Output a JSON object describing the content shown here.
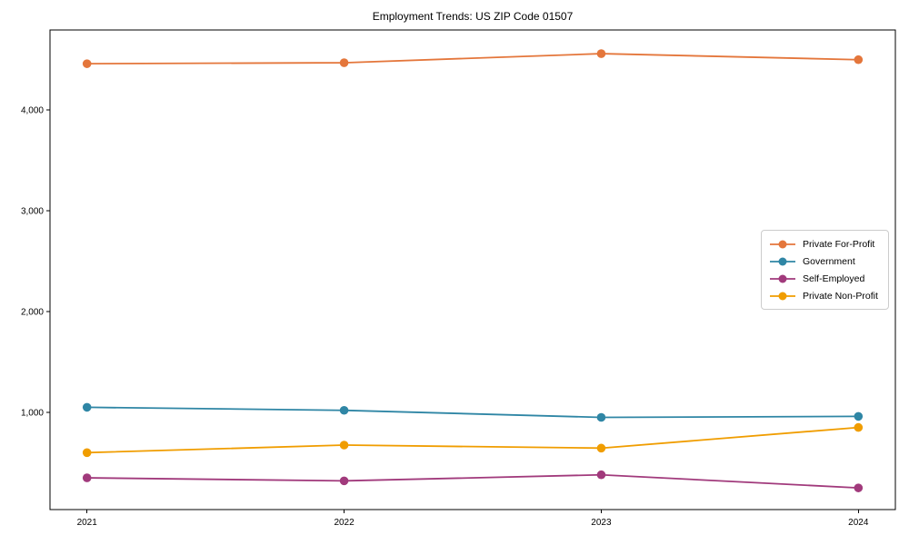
{
  "chart_data": {
    "type": "line",
    "title": "Employment Trends: US ZIP Code 01507",
    "x": [
      2021,
      2022,
      2023,
      2024
    ],
    "series": [
      {
        "name": "Private For-Profit",
        "color": "#e4763b",
        "values": [
          4460,
          4470,
          4560,
          4500
        ]
      },
      {
        "name": "Government",
        "color": "#2f86a5",
        "values": [
          1050,
          1020,
          950,
          960
        ]
      },
      {
        "name": "Self-Employed",
        "color": "#a13a7c",
        "values": [
          350,
          320,
          380,
          250
        ]
      },
      {
        "name": "Private Non-Profit",
        "color": "#f09d00",
        "values": [
          600,
          675,
          645,
          850
        ]
      }
    ],
    "yticks": [
      1000,
      2000,
      3000,
      4000
    ],
    "ytick_labels": [
      "1,000",
      "2,000",
      "3,000",
      "4,000"
    ],
    "xlabel": "",
    "ylabel": "",
    "ylim": [
      35,
      4795
    ],
    "grid": false,
    "legend_position": "center-right",
    "marker": "circle",
    "frame": true,
    "axis_color": "#000000",
    "background_color": "#ffffff"
  }
}
